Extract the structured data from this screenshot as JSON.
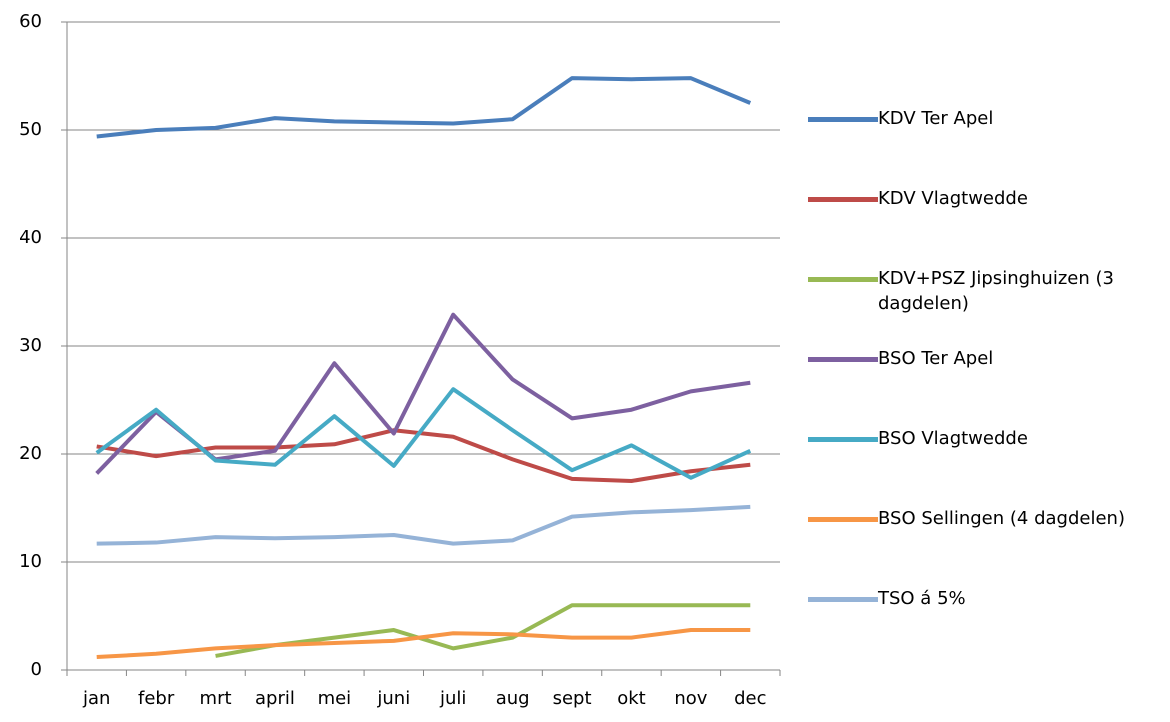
{
  "chart_data": {
    "type": "line",
    "categories": [
      "jan",
      "febr",
      "mrt",
      "april",
      "mei",
      "juni",
      "juli",
      "aug",
      "sept",
      "okt",
      "nov",
      "dec"
    ],
    "ylim": [
      0,
      60
    ],
    "yticks": [
      0,
      10,
      20,
      30,
      40,
      50,
      60
    ],
    "grid": true,
    "legend": "right",
    "series": [
      {
        "name": "KDV Ter Apel",
        "color": "#4a7ebb",
        "values": [
          49.4,
          50.0,
          50.2,
          51.1,
          50.8,
          50.7,
          50.6,
          51.0,
          54.8,
          54.7,
          54.8,
          52.5
        ]
      },
      {
        "name": "KDV Vlagtwedde",
        "color": "#be4b48",
        "values": [
          20.7,
          19.8,
          20.6,
          20.6,
          20.9,
          22.2,
          21.6,
          19.5,
          17.7,
          17.5,
          18.4,
          19.0
        ]
      },
      {
        "name": "KDV+PSZ Jipsinghuizen (3 dagdelen)",
        "color": "#98b954",
        "values": [
          null,
          null,
          1.3,
          2.3,
          3.0,
          3.7,
          2.0,
          3.0,
          6.0,
          6.0,
          6.0,
          6.0
        ]
      },
      {
        "name": "BSO Ter Apel",
        "color": "#7d60a0",
        "values": [
          18.2,
          23.9,
          19.5,
          20.3,
          28.4,
          21.9,
          32.9,
          26.9,
          23.3,
          24.1,
          25.8,
          26.6
        ]
      },
      {
        "name": "BSO Vlagtwedde",
        "color": "#46aac5",
        "values": [
          20.1,
          24.1,
          19.4,
          19.0,
          23.5,
          18.9,
          26.0,
          22.2,
          18.5,
          20.8,
          17.8,
          20.3
        ]
      },
      {
        "name": "BSO Sellingen (4 dagdelen)",
        "color": "#f79646",
        "values": [
          1.2,
          1.5,
          2.0,
          2.3,
          2.5,
          2.7,
          3.4,
          3.3,
          3.0,
          3.0,
          3.7,
          3.7
        ]
      },
      {
        "name": "TSO á 5%",
        "color": "#95b3d7",
        "values": [
          11.7,
          11.8,
          12.3,
          12.2,
          12.3,
          12.5,
          11.7,
          12.0,
          14.2,
          14.6,
          14.8,
          15.1
        ]
      }
    ]
  }
}
